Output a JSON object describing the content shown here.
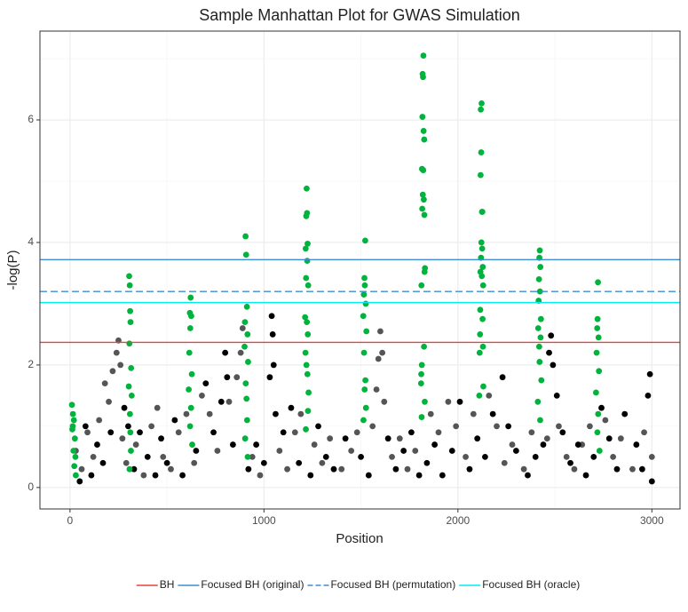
{
  "chart_data": {
    "type": "scatter",
    "title": "Sample Manhattan Plot for GWAS Simulation",
    "xlabel": "Position",
    "ylabel": "-log(P)",
    "xlim": [
      -155,
      3145
    ],
    "ylim": [
      -0.35,
      7.45
    ],
    "xticks": [
      0,
      1000,
      2000,
      3000
    ],
    "yticks": [
      0,
      2,
      4,
      6
    ],
    "xminor": [
      500,
      1500,
      2500
    ],
    "yminor": [
      1,
      3,
      5,
      7
    ],
    "grid": true,
    "legend": "bottom",
    "series": [
      {
        "color": "#555555",
        "x": [
          30,
          60,
          90,
          120,
          150,
          180,
          200,
          220,
          240,
          250,
          260,
          270,
          290,
          340,
          380,
          420,
          450,
          480,
          520,
          560,
          600,
          640,
          680,
          720,
          760,
          820,
          860,
          880,
          890,
          940,
          980,
          1080,
          1120,
          1160,
          1190,
          1260,
          1300,
          1340,
          1400,
          1450,
          1480,
          1560,
          1580,
          1590,
          1600,
          1610,
          1620,
          1660,
          1700,
          1740,
          1780,
          1860,
          1900,
          1950,
          1990,
          2040,
          2080,
          2160,
          2200,
          2240,
          2280,
          2340,
          2380,
          2460,
          2520,
          2560,
          2600,
          2640,
          2680,
          2760,
          2800,
          2840,
          2900,
          2960,
          3000
        ],
        "values": [
          0.6,
          0.3,
          0.9,
          0.5,
          1.1,
          1.7,
          1.4,
          1.9,
          2.2,
          2.4,
          2.0,
          0.8,
          0.4,
          0.7,
          0.2,
          1.0,
          1.3,
          0.5,
          0.3,
          0.9,
          1.2,
          0.4,
          1.5,
          1.2,
          0.6,
          1.4,
          1.8,
          2.2,
          2.6,
          0.5,
          0.2,
          0.6,
          0.3,
          0.9,
          1.2,
          0.7,
          0.4,
          0.8,
          0.3,
          0.6,
          0.9,
          1.0,
          1.6,
          2.1,
          2.55,
          2.2,
          1.4,
          0.5,
          0.8,
          0.3,
          0.6,
          1.2,
          0.9,
          1.4,
          1.0,
          0.5,
          1.2,
          1.5,
          1.0,
          0.4,
          0.7,
          0.3,
          0.9,
          0.8,
          1.0,
          0.5,
          0.3,
          0.7,
          1.0,
          1.1,
          0.5,
          0.8,
          0.3,
          0.9,
          0.5
        ]
      },
      {
        "color": "#000000",
        "x": [
          50,
          80,
          110,
          140,
          170,
          210,
          280,
          300,
          330,
          360,
          400,
          440,
          470,
          500,
          540,
          580,
          650,
          700,
          740,
          780,
          800,
          810,
          840,
          920,
          960,
          1000,
          1030,
          1040,
          1045,
          1050,
          1060,
          1100,
          1140,
          1180,
          1240,
          1280,
          1320,
          1360,
          1420,
          1500,
          1540,
          1640,
          1680,
          1720,
          1760,
          1800,
          1840,
          1880,
          1920,
          1970,
          2010,
          2060,
          2100,
          2140,
          2180,
          2230,
          2260,
          2300,
          2360,
          2400,
          2440,
          2470,
          2480,
          2490,
          2510,
          2540,
          2580,
          2620,
          2660,
          2700,
          2740,
          2780,
          2820,
          2860,
          2920,
          2950,
          2980,
          2990,
          3000
        ],
        "values": [
          0.1,
          1.0,
          0.2,
          0.7,
          0.4,
          0.9,
          1.3,
          1.0,
          0.3,
          0.9,
          0.5,
          0.2,
          0.8,
          0.4,
          1.1,
          0.2,
          0.6,
          1.7,
          0.9,
          1.4,
          2.2,
          1.8,
          0.7,
          0.3,
          0.7,
          0.4,
          1.8,
          2.8,
          2.5,
          2.0,
          1.2,
          0.9,
          1.3,
          0.4,
          0.2,
          1.0,
          0.5,
          0.3,
          0.8,
          0.5,
          0.2,
          0.8,
          0.3,
          0.6,
          0.9,
          0.2,
          0.4,
          0.7,
          0.2,
          0.6,
          1.4,
          0.3,
          0.8,
          0.5,
          1.2,
          1.8,
          1.0,
          0.6,
          0.2,
          0.5,
          0.7,
          2.2,
          2.48,
          2.0,
          1.5,
          0.9,
          0.4,
          0.7,
          0.2,
          0.5,
          1.3,
          0.8,
          0.3,
          1.2,
          0.7,
          0.3,
          1.5,
          1.85,
          0.1
        ]
      },
      {
        "color": "#00b33c",
        "x": [
          10,
          15,
          20,
          12,
          25,
          18,
          22,
          30,
          14,
          28,
          305,
          308,
          310,
          312,
          306,
          315,
          303,
          318,
          309,
          311,
          314,
          307,
          622,
          618,
          625,
          620,
          615,
          628,
          612,
          624,
          619,
          630,
          905,
          908,
          912,
          902,
          915,
          900,
          918,
          906,
          910,
          913,
          903,
          916,
          1220,
          1222,
          1218,
          1225,
          1215,
          1223,
          1217,
          1228,
          1212,
          1221,
          1226,
          1214,
          1219,
          1224,
          1230,
          1227,
          1216,
          1522,
          1518,
          1520,
          1515,
          1525,
          1512,
          1528,
          1516,
          1523,
          1519,
          1526,
          1513,
          1822,
          1818,
          1820,
          1817,
          1823,
          1826,
          1815,
          1821,
          1819,
          1824,
          1816,
          1827,
          1830,
          1828,
          1812,
          1825,
          1814,
          1811,
          1810,
          1829,
          1813,
          2122,
          2118,
          2120,
          2117,
          2124,
          2126,
          2121,
          2125,
          2119,
          2128,
          2116,
          2123,
          2130,
          2115,
          2127,
          2114,
          2129,
          2112,
          2131,
          2110,
          2422,
          2420,
          2425,
          2418,
          2423,
          2416,
          2428,
          2414,
          2426,
          2419,
          2421,
          2430,
          2412,
          2424,
          2722,
          2720,
          2718,
          2725,
          2715,
          2727,
          2712,
          2723,
          2719,
          2730
        ],
        "values": [
          1.35,
          1.2,
          1.1,
          0.95,
          0.8,
          0.6,
          0.35,
          0.2,
          1.0,
          0.5,
          3.45,
          3.3,
          2.88,
          2.7,
          2.35,
          1.95,
          1.65,
          1.5,
          1.2,
          0.9,
          0.6,
          0.3,
          3.1,
          2.85,
          2.8,
          2.6,
          2.2,
          1.85,
          1.6,
          1.3,
          1.0,
          0.7,
          4.1,
          3.8,
          2.95,
          2.7,
          2.5,
          2.3,
          2.05,
          1.7,
          1.45,
          1.1,
          0.8,
          0.5,
          4.88,
          4.48,
          4.43,
          3.98,
          3.9,
          3.7,
          3.42,
          3.3,
          2.78,
          2.7,
          2.5,
          2.2,
          2.0,
          1.85,
          1.55,
          1.25,
          0.95,
          4.03,
          3.42,
          3.3,
          3.15,
          3.0,
          2.8,
          2.55,
          2.2,
          1.75,
          1.6,
          1.3,
          1.1,
          7.05,
          6.75,
          6.7,
          6.05,
          5.82,
          5.68,
          5.2,
          5.18,
          4.78,
          4.7,
          4.55,
          4.45,
          3.58,
          3.52,
          3.3,
          2.3,
          2.0,
          1.85,
          1.7,
          1.4,
          1.15,
          6.27,
          6.17,
          5.47,
          5.1,
          4.5,
          4.5,
          4.0,
          3.9,
          3.75,
          3.6,
          3.52,
          3.45,
          3.3,
          2.9,
          2.75,
          2.5,
          2.3,
          2.2,
          1.65,
          1.5,
          3.87,
          3.75,
          3.6,
          3.4,
          3.2,
          3.05,
          2.75,
          2.6,
          2.45,
          2.3,
          2.05,
          1.75,
          1.4,
          1.1,
          3.35,
          2.75,
          2.6,
          2.45,
          2.2,
          1.9,
          1.55,
          1.2,
          0.9,
          0.6
        ]
      }
    ],
    "hlines": [
      {
        "name": "BH",
        "value": 2.37,
        "color": "#e8433a",
        "dashed": false
      },
      {
        "name": "Focused BH (original)",
        "value": 3.72,
        "color": "#3a8fd6",
        "dashed": false
      },
      {
        "name": "Focused BH (permutation)",
        "value": 3.2,
        "color": "#3a8fd6",
        "dashed": true
      },
      {
        "name": "Focused BH (oracle)",
        "value": 3.02,
        "color": "#00eef0",
        "dashed": false
      }
    ]
  }
}
